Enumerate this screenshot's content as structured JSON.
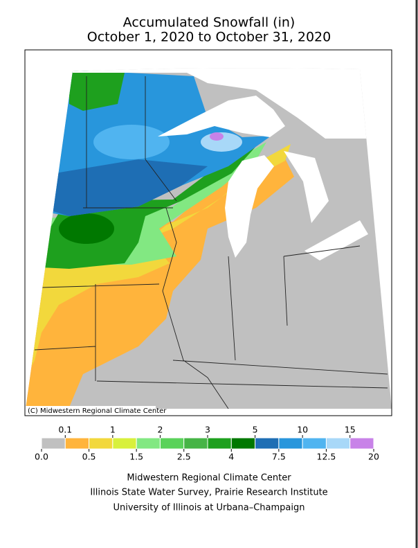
{
  "title": [
    "Accumulated Snowfall (in)",
    "October 1, 2020 to October 31, 2020"
  ],
  "copyright": "(C) Midwestern Regional Climate Center",
  "legend": {
    "edges": [
      {
        "value": 0,
        "label": "0.0"
      },
      0.1,
      0.5,
      1,
      1.5,
      2,
      2.5,
      3,
      4,
      5,
      7.5,
      10,
      12.5,
      15,
      20
    ],
    "colors": [
      "#c0c0c0",
      "#ffb43c",
      "#f2d83c",
      "#d8f03c",
      "#82e882",
      "#5ad25a",
      "#46b446",
      "#1ea01e",
      "#007800",
      "#1e6eb4",
      "#2896dc",
      "#50b4f0",
      "#a8d8f8",
      "#c882e8"
    ]
  },
  "footer": [
    "Midwestern Regional Climate Center",
    "Illinois State Water Survey, Prairie Research Institute",
    "University of Illinois at Urbana–Champaign"
  ]
}
